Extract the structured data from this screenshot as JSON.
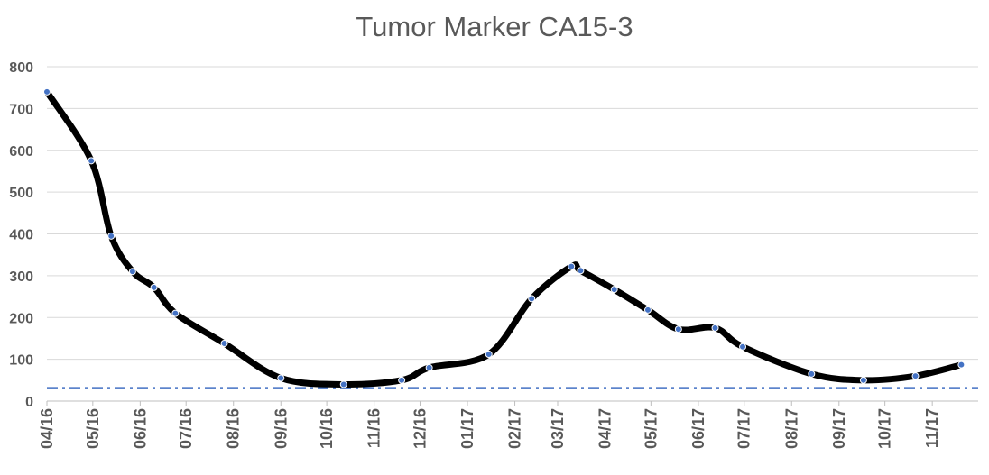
{
  "chart_data": {
    "type": "line",
    "title": "Tumor Marker CA15-3",
    "xlabel": "",
    "ylabel": "",
    "ylim": [
      0,
      800
    ],
    "yticks": [
      0,
      100,
      200,
      300,
      400,
      500,
      600,
      700,
      800
    ],
    "xlim": [
      "2016-04-01",
      "2017-12-01"
    ],
    "xticks": [
      {
        "date": "2016-04-01",
        "label": "04/16"
      },
      {
        "date": "2016-05-01",
        "label": "05/16"
      },
      {
        "date": "2016-06-01",
        "label": "06/16"
      },
      {
        "date": "2016-07-01",
        "label": "07/16"
      },
      {
        "date": "2016-08-01",
        "label": "08/16"
      },
      {
        "date": "2016-09-01",
        "label": "09/16"
      },
      {
        "date": "2016-10-01",
        "label": "10/16"
      },
      {
        "date": "2016-11-01",
        "label": "11/16"
      },
      {
        "date": "2016-12-01",
        "label": "12/16"
      },
      {
        "date": "2017-01-01",
        "label": "01/17"
      },
      {
        "date": "2017-02-01",
        "label": "02/17"
      },
      {
        "date": "2017-03-01",
        "label": "03/17"
      },
      {
        "date": "2017-04-01",
        "label": "04/17"
      },
      {
        "date": "2017-05-01",
        "label": "05/17"
      },
      {
        "date": "2017-06-01",
        "label": "06/17"
      },
      {
        "date": "2017-07-01",
        "label": "07/17"
      },
      {
        "date": "2017-08-01",
        "label": "08/17"
      },
      {
        "date": "2017-09-01",
        "label": "09/17"
      },
      {
        "date": "2017-10-01",
        "label": "10/17"
      },
      {
        "date": "2017-11-01",
        "label": "11/17"
      }
    ],
    "grid": true,
    "series": [
      {
        "line_color": "#000000",
        "marker_color": "#4472C4",
        "points": [
          {
            "x": "2016-04-01",
            "y": 740
          },
          {
            "x": "2016-04-30",
            "y": 575
          },
          {
            "x": "2016-05-13",
            "y": 395
          },
          {
            "x": "2016-05-27",
            "y": 310
          },
          {
            "x": "2016-06-10",
            "y": 272
          },
          {
            "x": "2016-06-24",
            "y": 210
          },
          {
            "x": "2016-07-26",
            "y": 138
          },
          {
            "x": "2016-09-01",
            "y": 55
          },
          {
            "x": "2016-10-12",
            "y": 40
          },
          {
            "x": "2016-11-19",
            "y": 50
          },
          {
            "x": "2016-12-07",
            "y": 80
          },
          {
            "x": "2017-01-15",
            "y": 112
          },
          {
            "x": "2017-02-12",
            "y": 245
          },
          {
            "x": "2017-03-10",
            "y": 322
          },
          {
            "x": "2017-03-16",
            "y": 312
          },
          {
            "x": "2017-04-07",
            "y": 267
          },
          {
            "x": "2017-04-29",
            "y": 218
          },
          {
            "x": "2017-05-19",
            "y": 172
          },
          {
            "x": "2017-06-12",
            "y": 175
          },
          {
            "x": "2017-06-30",
            "y": 130
          },
          {
            "x": "2017-08-14",
            "y": 65
          },
          {
            "x": "2017-09-17",
            "y": 50
          },
          {
            "x": "2017-10-21",
            "y": 60
          },
          {
            "x": "2017-11-20",
            "y": 87
          }
        ]
      }
    ],
    "reference_line": {
      "y": 31,
      "color": "#4472C4",
      "style": "dash-dot"
    },
    "colors": {
      "grid": "#d9d9d9",
      "axis": "#bfbfbf",
      "text": "#595959"
    }
  }
}
